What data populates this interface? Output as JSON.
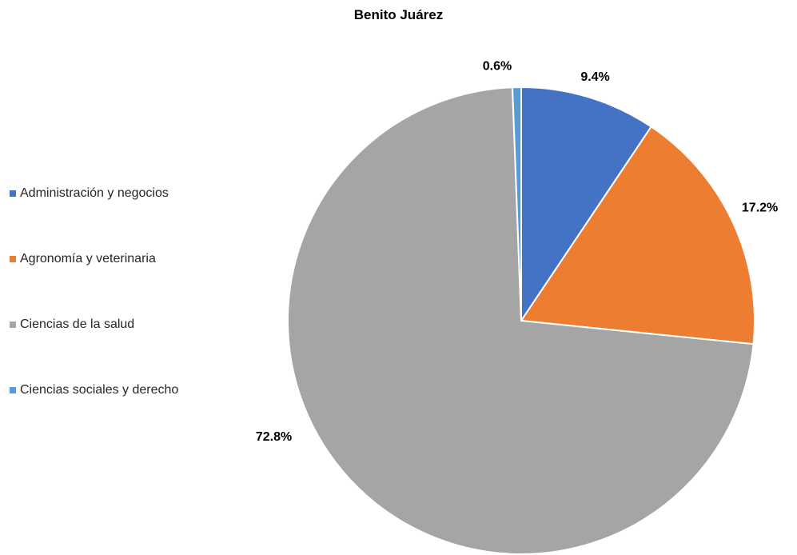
{
  "chart_data": {
    "type": "pie",
    "title": "Benito Juárez",
    "legend_position": "left",
    "labels": [
      "Administración y negocios",
      "Agronomía y veterinaria",
      "Ciencias de la salud",
      "Ciencias sociales y derecho"
    ],
    "values": [
      9.4,
      17.2,
      72.8,
      0.6
    ],
    "value_labels": [
      "9.4%",
      "17.2%",
      "72.8%",
      "0.6%"
    ],
    "colors": [
      "#4472C4",
      "#ED7D31",
      "#A5A5A5",
      "#5B9BD5"
    ],
    "start_angle_deg": 0,
    "direction": "clockwise"
  }
}
